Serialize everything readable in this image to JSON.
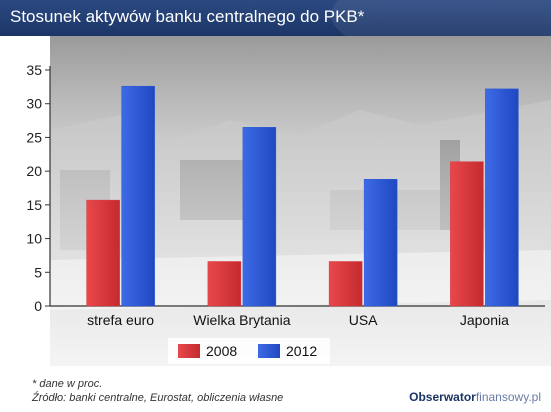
{
  "title": "Stosunek aktywów banku centralnego do PKB*",
  "chart_data": {
    "type": "bar",
    "categories": [
      "strefa euro",
      "Wielka Brytania",
      "USA",
      "Japonia"
    ],
    "series": [
      {
        "name": "2008",
        "values": [
          15.7,
          6.6,
          6.6,
          21.4
        ],
        "color": "#d8383c"
      },
      {
        "name": "2012",
        "values": [
          32.6,
          26.5,
          18.8,
          32.2
        ],
        "color": "#2b5bd7"
      }
    ],
    "ylim": [
      0,
      35
    ],
    "yticks": [
      "0",
      "5",
      "10",
      "15",
      "20",
      "25",
      "30",
      "35"
    ],
    "legend_position": "bottom-center",
    "grid": false
  },
  "footnotes": {
    "note": "* dane w proc.",
    "source": "Źródło: banki centralne, Eurostat, obliczenia własne"
  },
  "brand": {
    "part1": "Obserwator",
    "part2": "finansowy",
    "part3": ".pl"
  }
}
